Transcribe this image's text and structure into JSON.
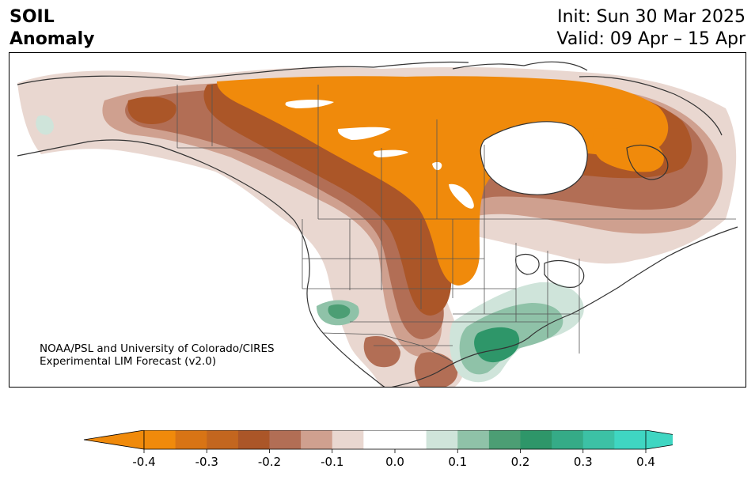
{
  "header": {
    "title_line1": "SOIL",
    "title_line2": "Anomaly",
    "init_text": "Init: Sun 30 Mar 2025",
    "valid_text": "Valid: 09 Apr – 15 Apr"
  },
  "credit": {
    "line1": "NOAA/PSL and University of Colorado/CIRES",
    "line2": "Experimental LIM Forecast (v2.0)"
  },
  "colorbar": {
    "levels": [
      -0.4,
      -0.35,
      -0.3,
      -0.25,
      -0.2,
      -0.15,
      -0.1,
      -0.05,
      0.05,
      0.1,
      0.15,
      0.2,
      0.25,
      0.3,
      0.35,
      0.4
    ],
    "colors": [
      "#f08a0b",
      "#d87415",
      "#c3661f",
      "#ab5628",
      "#b26e55",
      "#cfa08f",
      "#e9d7d0",
      "#ffffff",
      "#cfe4da",
      "#8fc2a8",
      "#4c9e74",
      "#2e9669",
      "#35ab87",
      "#3cc1a5",
      "#3fd6c2"
    ],
    "under_color": "#f08a0b",
    "over_color": "#3fd6c2",
    "tick_labels": [
      "-0.4",
      "-0.3",
      "-0.2",
      "-0.1",
      "0.0",
      "0.1",
      "0.2",
      "0.3",
      "0.4"
    ],
    "tick_values": [
      -0.4,
      -0.3,
      -0.2,
      -0.1,
      0.0,
      0.1,
      0.2,
      0.3,
      0.4
    ]
  }
}
